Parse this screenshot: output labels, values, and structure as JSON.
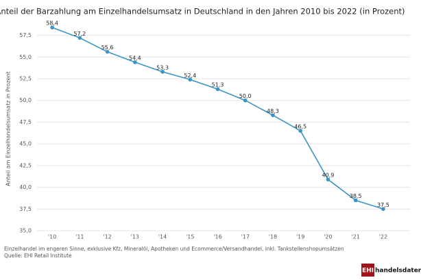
{
  "chart_data": {
    "type": "line",
    "title": "Anteil der Barzahlung am Einzelhandelsumsatz in Deutschland in den Jahren 2010 bis 2022 (in Prozent)",
    "y_label": "Anteil am Einzelhandelsumsatz in Prozent",
    "categories": [
      "'10",
      "'11",
      "'12",
      "'13",
      "'14",
      "'15",
      "'16",
      "'17",
      "'18",
      "'19",
      "'20",
      "'21",
      "'22"
    ],
    "values": [
      58.4,
      57.2,
      55.6,
      54.4,
      53.3,
      52.4,
      51.3,
      50.0,
      48.3,
      46.5,
      40.9,
      38.5,
      37.5
    ],
    "value_labels": [
      "58,4",
      "57,2",
      "55,6",
      "54,4",
      "53,3",
      "52,4",
      "51,3",
      "50,0",
      "48,3",
      "46,5",
      "40,9",
      "38,5",
      "37,5"
    ],
    "color": "#3a94c4",
    "ylim": [
      35,
      59.2
    ],
    "yticks": [
      {
        "value": 35,
        "label": "35,0"
      },
      {
        "value": 37.5,
        "label": "37,5"
      },
      {
        "value": 40,
        "label": "40,0"
      },
      {
        "value": 42.5,
        "label": "42,5"
      },
      {
        "value": 45,
        "label": "45,0"
      },
      {
        "value": 47.5,
        "label": "47,5"
      },
      {
        "value": 50,
        "label": "50,0"
      },
      {
        "value": 52.5,
        "label": "52,5"
      },
      {
        "value": 55,
        "label": "55,0"
      },
      {
        "value": 57.5,
        "label": "57,5"
      }
    ],
    "grid": true,
    "footnote": "Einzelhandel im engeren Sinne, exklusive Kfz, Mineralöl, Apotheken und Ecommerce/Versandhandel, inkl. Tankstellenshopumsätzen",
    "source": "Quelle: EHI Retail Institute",
    "logo_box": "EHI",
    "logo_text": "handelsdaten.de"
  }
}
